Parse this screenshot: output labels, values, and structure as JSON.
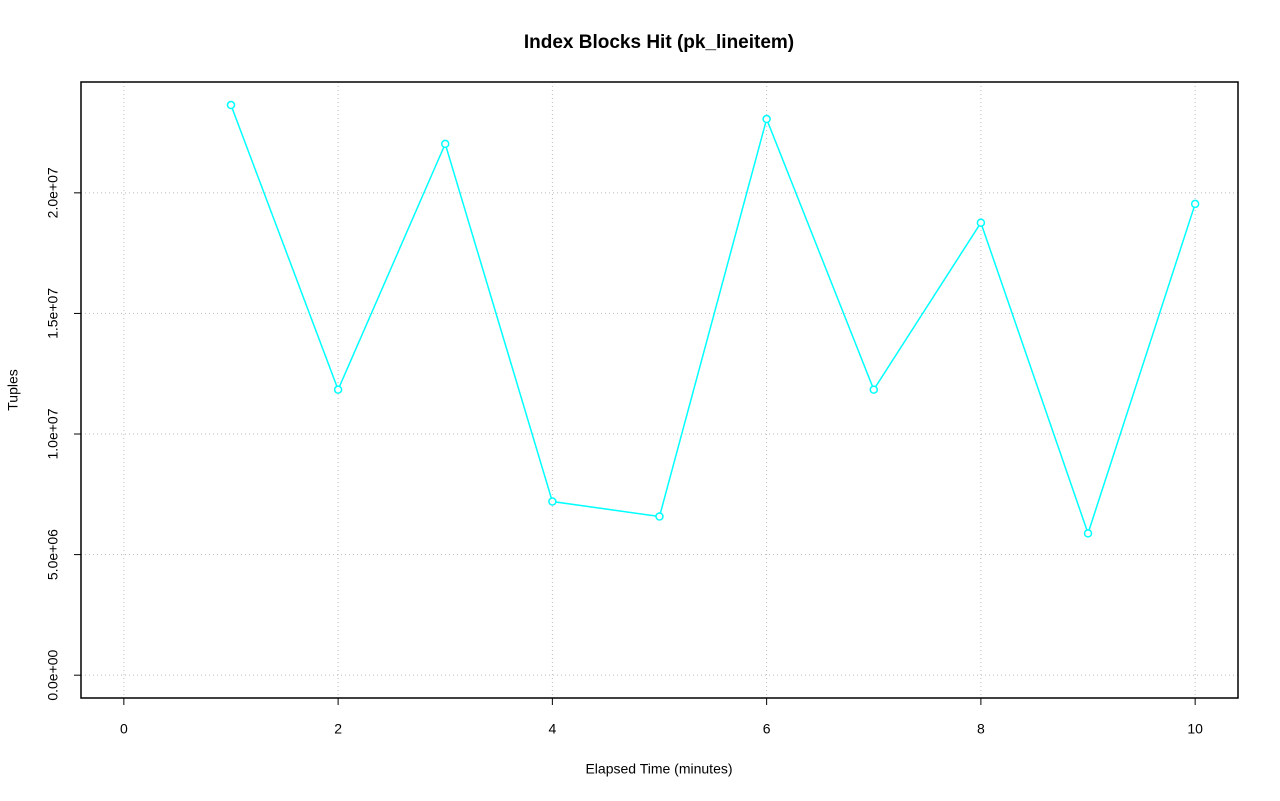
{
  "chart_data": {
    "type": "line",
    "title": "Index Blocks Hit (pk_lineitem)",
    "x_label": "Elapsed Time (minutes)",
    "y_label": "Tuples",
    "x": [
      1,
      2,
      3,
      4,
      5,
      6,
      7,
      8,
      9,
      10
    ],
    "series": [
      {
        "name": "pk_lineitem",
        "color": "#00ffff",
        "values": [
          23640000,
          11840000,
          22030000,
          7200000,
          6580000,
          23060000,
          11840000,
          18760000,
          5880000,
          19540000
        ]
      }
    ],
    "xlim": [
      -0.4,
      10.4
    ],
    "xticks": [
      0,
      2,
      4,
      6,
      8,
      10
    ],
    "ylim": [
      -946000,
      24596000
    ],
    "yticks": [
      {
        "value": 0,
        "label": "0.0e+00"
      },
      {
        "value": 5000000,
        "label": "5.0e+06"
      },
      {
        "value": 10000000,
        "label": "1.0e+07"
      },
      {
        "value": 15000000,
        "label": "1.5e+07"
      },
      {
        "value": 20000000,
        "label": "2.0e+07"
      }
    ],
    "grid": true
  }
}
